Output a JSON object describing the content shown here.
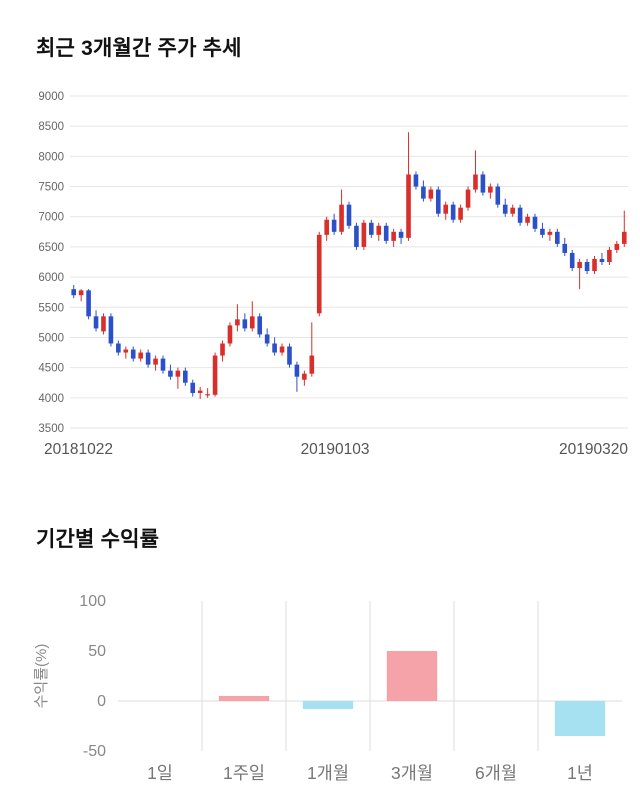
{
  "price_section": {
    "title": "최근 3개월간 주가 추세"
  },
  "returns_section": {
    "title": "기간별 수익률"
  },
  "chart_data": [
    {
      "type": "candlestick",
      "title": "최근 3개월간 주가 추세",
      "ylim": [
        3500,
        9000
      ],
      "yticks": [
        9000,
        8500,
        8000,
        7500,
        7000,
        6500,
        6000,
        5500,
        5000,
        4500,
        4000,
        3500
      ],
      "xtick_labels": [
        "20181022",
        "20190103",
        "20190320"
      ],
      "colors": {
        "up": "#d92f2b",
        "down": "#2b50c8",
        "grid": "#e6e6e6",
        "tick_text": "#666",
        "xtick_text": "#555"
      },
      "candles_format": "open,high,low,close",
      "candles": [
        [
          5800,
          5870,
          5650,
          5700
        ],
        [
          5700,
          5800,
          5600,
          5780
        ],
        [
          5780,
          5800,
          5300,
          5350
        ],
        [
          5350,
          5450,
          5100,
          5150
        ],
        [
          5100,
          5400,
          5050,
          5350
        ],
        [
          5350,
          5400,
          4850,
          4900
        ],
        [
          4900,
          4950,
          4700,
          4750
        ],
        [
          4750,
          4850,
          4650,
          4800
        ],
        [
          4800,
          4850,
          4600,
          4650
        ],
        [
          4650,
          4800,
          4600,
          4750
        ],
        [
          4750,
          4800,
          4500,
          4550
        ],
        [
          4550,
          4700,
          4450,
          4650
        ],
        [
          4650,
          4700,
          4400,
          4450
        ],
        [
          4450,
          4550,
          4300,
          4350
        ],
        [
          4350,
          4500,
          4150,
          4450
        ],
        [
          4450,
          4500,
          4200,
          4250
        ],
        [
          4250,
          4300,
          4020,
          4080
        ],
        [
          4080,
          4180,
          3980,
          4120
        ],
        [
          4060,
          4160,
          4000,
          4060
        ],
        [
          4050,
          4750,
          4020,
          4700
        ],
        [
          4700,
          4950,
          4600,
          4900
        ],
        [
          4900,
          5250,
          4850,
          5200
        ],
        [
          5200,
          5550,
          5100,
          5300
        ],
        [
          5300,
          5400,
          5100,
          5150
        ],
        [
          5150,
          5600,
          5100,
          5350
        ],
        [
          5350,
          5400,
          5000,
          5050
        ],
        [
          5050,
          5150,
          4850,
          4900
        ],
        [
          4900,
          5000,
          4700,
          4750
        ],
        [
          4750,
          4900,
          4700,
          4850
        ],
        [
          4850,
          4900,
          4500,
          4550
        ],
        [
          4550,
          4600,
          4100,
          4350
        ],
        [
          4300,
          4450,
          4200,
          4400
        ],
        [
          4400,
          5250,
          4350,
          4700
        ],
        [
          5400,
          6750,
          5350,
          6700
        ],
        [
          6700,
          7000,
          6600,
          6950
        ],
        [
          6950,
          7050,
          6700,
          6750
        ],
        [
          6750,
          7450,
          6700,
          7200
        ],
        [
          7200,
          7250,
          6800,
          6850
        ],
        [
          6850,
          6900,
          6450,
          6500
        ],
        [
          6500,
          6950,
          6450,
          6900
        ],
        [
          6900,
          6950,
          6650,
          6700
        ],
        [
          6700,
          6900,
          6600,
          6850
        ],
        [
          6850,
          6900,
          6550,
          6600
        ],
        [
          6600,
          6800,
          6500,
          6750
        ],
        [
          6750,
          6800,
          6550,
          6650
        ],
        [
          6650,
          8400,
          6600,
          7700
        ],
        [
          7700,
          7750,
          7450,
          7500
        ],
        [
          7500,
          7600,
          7250,
          7300
        ],
        [
          7300,
          7500,
          7250,
          7450
        ],
        [
          7450,
          7500,
          7000,
          7050
        ],
        [
          7050,
          7250,
          6950,
          7200
        ],
        [
          7200,
          7250,
          6900,
          6950
        ],
        [
          6950,
          7200,
          6900,
          7150
        ],
        [
          7150,
          7500,
          7100,
          7450
        ],
        [
          7450,
          8100,
          7400,
          7700
        ],
        [
          7700,
          7750,
          7350,
          7400
        ],
        [
          7400,
          7550,
          7300,
          7500
        ],
        [
          7500,
          7550,
          7150,
          7200
        ],
        [
          7200,
          7300,
          7000,
          7050
        ],
        [
          7050,
          7200,
          7000,
          7150
        ],
        [
          7150,
          7200,
          6850,
          6900
        ],
        [
          6900,
          7050,
          6850,
          7000
        ],
        [
          7000,
          7050,
          6750,
          6800
        ],
        [
          6800,
          6900,
          6650,
          6700
        ],
        [
          6700,
          6800,
          6600,
          6750
        ],
        [
          6750,
          6800,
          6500,
          6550
        ],
        [
          6550,
          6650,
          6350,
          6400
        ],
        [
          6400,
          6450,
          6100,
          6150
        ],
        [
          6150,
          6300,
          5800,
          6250
        ],
        [
          6250,
          6300,
          6050,
          6100
        ],
        [
          6100,
          6350,
          6050,
          6300
        ],
        [
          6300,
          6400,
          6200,
          6250
        ],
        [
          6250,
          6500,
          6200,
          6450
        ],
        [
          6450,
          6600,
          6400,
          6550
        ],
        [
          6550,
          7100,
          6500,
          6750
        ]
      ]
    },
    {
      "type": "bar",
      "title": "기간별 수익률",
      "ylabel": "수익률(%)",
      "categories": [
        "1일",
        "1주일",
        "1개월",
        "3개월",
        "6개월",
        "1년"
      ],
      "values": [
        0,
        5,
        -8,
        50,
        0,
        -35
      ],
      "ylim": [
        -50,
        100
      ],
      "yticks": [
        100,
        50,
        0,
        -50
      ],
      "grid": "vertical-separators+zero-line",
      "legend": "none",
      "colors": {
        "positive": "#f5a3a8",
        "negative": "#a6e1f2",
        "grid": "#dddddd",
        "tick_text": "#888",
        "cat_text": "#777"
      }
    }
  ]
}
